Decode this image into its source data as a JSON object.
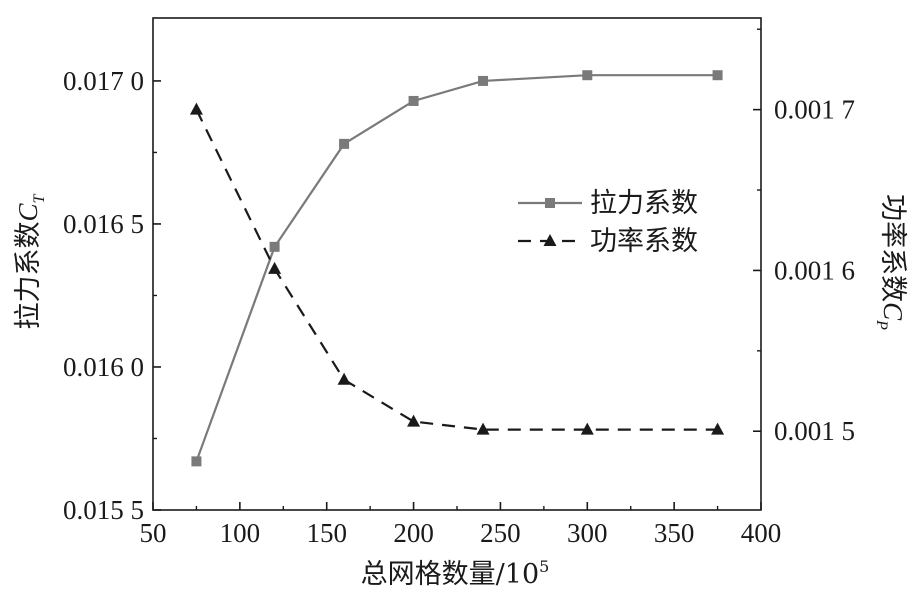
{
  "chart_data": {
    "type": "line",
    "x": [
      75,
      120,
      160,
      200,
      240,
      300,
      375
    ],
    "xlabel": "总网格数量/10",
    "xlabel_exp": "5",
    "xlim": [
      50,
      400
    ],
    "x_ticks": [
      50,
      100,
      150,
      200,
      250,
      300,
      350,
      400
    ],
    "x_tick_labels": [
      "50",
      "100",
      "150",
      "200",
      "250",
      "300",
      "350",
      "400"
    ],
    "y_left": {
      "label": "拉力系数",
      "symbol": "C",
      "subscript": "T",
      "lim": [
        0.0155,
        0.01722
      ],
      "ticks": [
        0.0155,
        0.016,
        0.0165,
        0.017
      ],
      "tick_labels": [
        "0.015 5",
        "0.016 0",
        "0.016 5",
        "0.017 0"
      ]
    },
    "y_right": {
      "label": "功率系数",
      "symbol": "C",
      "subscript": "P",
      "lim": [
        0.001451,
        0.001757
      ],
      "ticks": [
        0.0015,
        0.0016,
        0.0017
      ],
      "tick_labels": [
        "0.001 5",
        "0.001 6",
        "0.001 7"
      ]
    },
    "series": [
      {
        "name": "拉力系数",
        "axis": "left",
        "marker": "square",
        "line": "solid",
        "color": "#7a7a7a",
        "values": [
          0.01567,
          0.01642,
          0.01678,
          0.01693,
          0.017,
          0.01702,
          0.01702
        ]
      },
      {
        "name": "功率系数",
        "axis": "right",
        "marker": "triangle",
        "line": "dashed",
        "color": "#1a1a1a",
        "values": [
          0.0017,
          0.001601,
          0.001532,
          0.001506,
          0.001501,
          0.001501,
          0.001501
        ]
      }
    ],
    "legend": "center-right",
    "grid": false
  }
}
